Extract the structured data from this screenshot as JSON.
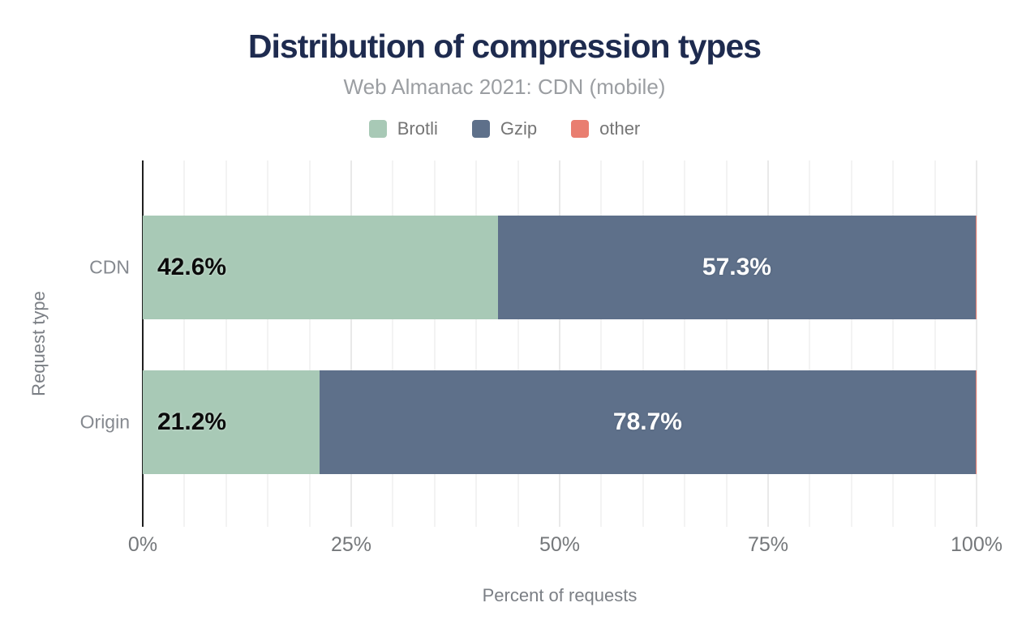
{
  "chart_data": {
    "type": "bar",
    "orientation": "horizontal",
    "stacked": true,
    "title": "Distribution of compression types",
    "subtitle": "Web Almanac 2021: CDN (mobile)",
    "xlabel": "Percent of requests",
    "ylabel": "Request type",
    "xlim": [
      0,
      100
    ],
    "x_ticks": [
      "0%",
      "25%",
      "50%",
      "75%",
      "100%"
    ],
    "x_tick_positions": [
      0,
      25,
      50,
      75,
      100
    ],
    "grid": "vertical minor gridlines every 5%, major every 25%",
    "legend_position": "top",
    "categories": [
      "CDN",
      "Origin"
    ],
    "series": [
      {
        "name": "Brotli",
        "color": "#a8c9b6",
        "values": [
          42.6,
          21.2
        ],
        "labels": [
          "42.6%",
          "21.2%"
        ],
        "label_color": "#0b0b0b",
        "label_align": "left"
      },
      {
        "name": "Gzip",
        "color": "#5e708a",
        "values": [
          57.3,
          78.7
        ],
        "labels": [
          "57.3%",
          "78.7%"
        ],
        "label_color": "#ffffff",
        "label_align": "center"
      },
      {
        "name": "other",
        "color": "#e97e70",
        "values": [
          0.1,
          0.1
        ],
        "labels": [
          "",
          ""
        ],
        "label_color": "#ffffff",
        "label_align": "center"
      }
    ],
    "colors": {
      "title": "#1e2b4f",
      "subtitle": "#9b9ea2",
      "axis_text": "#75787b",
      "category_text": "#85898f",
      "gridline_minor": "#f3f3f3",
      "gridline_major": "#e9e9e9",
      "axis_line": "#1f1f1f"
    }
  }
}
